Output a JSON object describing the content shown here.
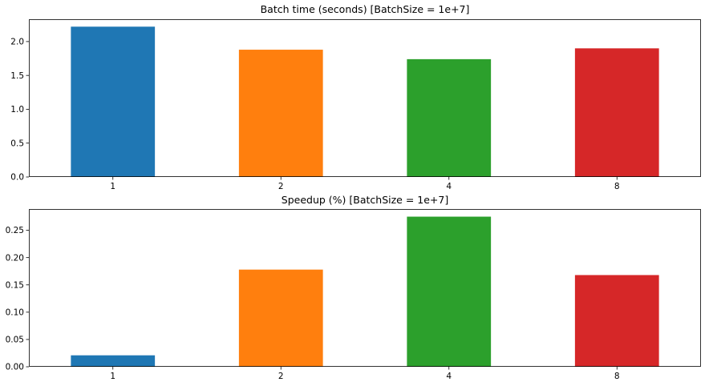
{
  "chart_data": [
    {
      "type": "bar",
      "title": "Batch time (seconds) [BatchSize = 1e+7]",
      "xlabel": "",
      "ylabel": "",
      "categories": [
        "1",
        "2",
        "4",
        "8"
      ],
      "values": [
        2.22,
        1.88,
        1.74,
        1.9
      ],
      "colors": [
        "#1f77b4",
        "#ff7f0e",
        "#2ca02c",
        "#d62728"
      ],
      "ylim": [
        0,
        2.33
      ],
      "yticks": [
        0.0,
        0.5,
        1.0,
        1.5,
        2.0
      ],
      "ytick_labels": [
        "0.0",
        "0.5",
        "1.0",
        "1.5",
        "2.0"
      ],
      "grid": false,
      "legend": "none"
    },
    {
      "type": "bar",
      "title": "Speedup (%) [BatchSize = 1e+7]",
      "xlabel": "",
      "ylabel": "",
      "categories": [
        "1",
        "2",
        "4",
        "8"
      ],
      "values": [
        0.021,
        0.178,
        0.275,
        0.168
      ],
      "colors": [
        "#1f77b4",
        "#ff7f0e",
        "#2ca02c",
        "#d62728"
      ],
      "ylim": [
        0,
        0.289
      ],
      "yticks": [
        0.0,
        0.05,
        0.1,
        0.15,
        0.2,
        0.25
      ],
      "ytick_labels": [
        "0.00",
        "0.05",
        "0.10",
        "0.15",
        "0.20",
        "0.25"
      ],
      "grid": false,
      "legend": "none"
    }
  ]
}
